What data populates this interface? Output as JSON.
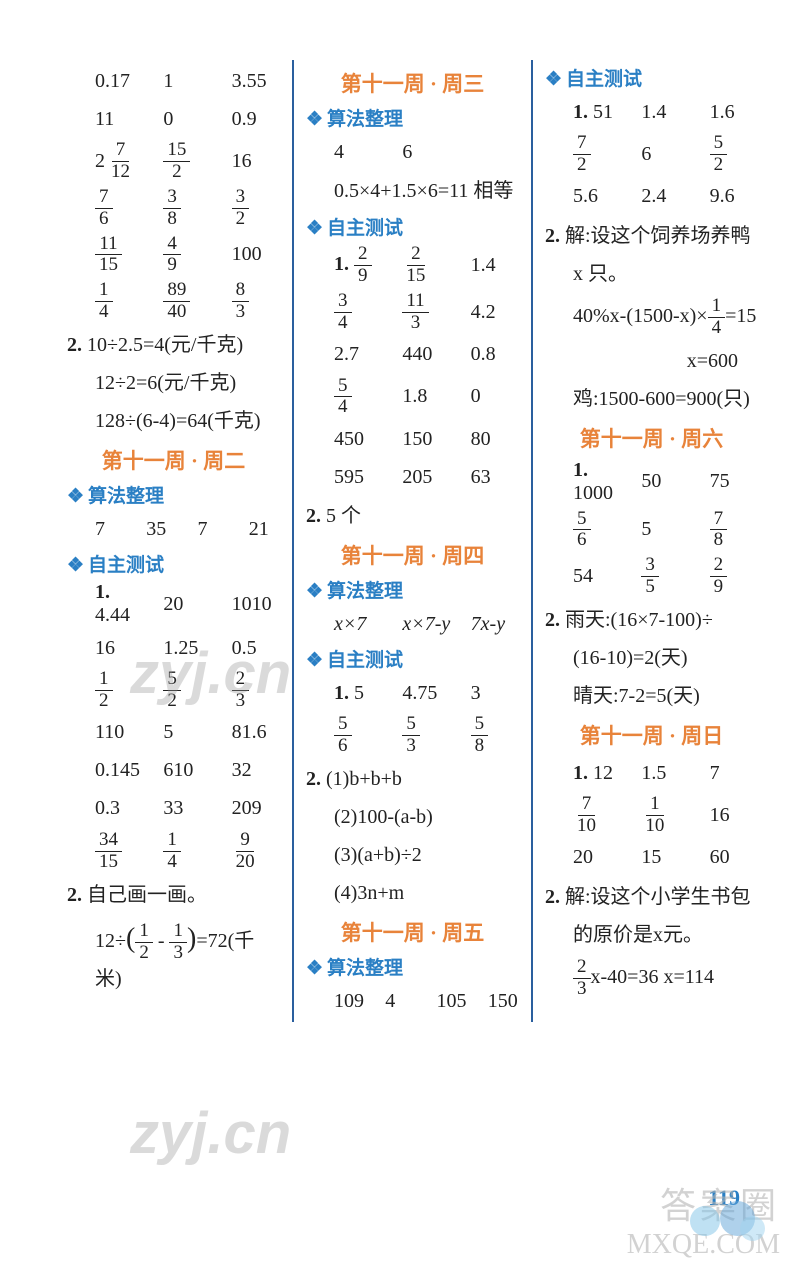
{
  "page_number": "119",
  "colors": {
    "heading_orange": "#e8833a",
    "heading_blue": "#2a7fc4",
    "divider": "#2a5f9e",
    "text": "#222222",
    "background": "#ffffff"
  },
  "watermarks": {
    "main": "zyj.cn",
    "bottom_line1": "答案圈",
    "bottom_line2": "MXQE.COM"
  },
  "col1": {
    "grid1": [
      [
        "0.17",
        "1",
        "3.55"
      ],
      [
        "11",
        "0",
        "0.9"
      ]
    ],
    "frac_row1": [
      {
        "type": "mixed",
        "whole": "2",
        "num": "7",
        "den": "12"
      },
      {
        "type": "frac",
        "num": "15",
        "den": "2"
      },
      {
        "type": "text",
        "val": "16"
      }
    ],
    "frac_row2": [
      {
        "type": "frac",
        "num": "7",
        "den": "6"
      },
      {
        "type": "frac",
        "num": "3",
        "den": "8"
      },
      {
        "type": "frac",
        "num": "3",
        "den": "2"
      }
    ],
    "frac_row3": [
      {
        "type": "frac",
        "num": "11",
        "den": "15"
      },
      {
        "type": "frac",
        "num": "4",
        "den": "9"
      },
      {
        "type": "text",
        "val": "100"
      }
    ],
    "frac_row4": [
      {
        "type": "frac",
        "num": "1",
        "den": "4"
      },
      {
        "type": "frac",
        "num": "89",
        "den": "40"
      },
      {
        "type": "frac",
        "num": "8",
        "den": "3"
      }
    ],
    "q2_lines": [
      "10÷2.5=4(元/千克)",
      "12÷2=6(元/千克)",
      "128÷(6-4)=64(千克)"
    ],
    "week_header": "第十一周 · 周二",
    "section1": "算法整理",
    "section1_row": [
      "7",
      "35",
      "7",
      "21"
    ],
    "section2": "自主测试",
    "q1_label": "1.",
    "test_rows": [
      [
        "4.44",
        "20",
        "1010"
      ],
      [
        "16",
        "1.25",
        "0.5"
      ]
    ],
    "test_frac_row1": [
      {
        "type": "frac",
        "num": "1",
        "den": "2"
      },
      {
        "type": "frac",
        "num": "5",
        "den": "2"
      },
      {
        "type": "frac",
        "num": "2",
        "den": "3"
      }
    ],
    "test_rows2": [
      [
        "110",
        "5",
        "81.6"
      ],
      [
        "0.145",
        "610",
        "32"
      ],
      [
        "0.3",
        "33",
        "209"
      ]
    ],
    "test_frac_row2": [
      {
        "type": "frac",
        "num": "34",
        "den": "15"
      },
      {
        "type": "frac",
        "num": "1",
        "den": "4"
      },
      {
        "type": "frac",
        "num": "9",
        "den": "20"
      }
    ],
    "q2_label": "2.",
    "q2_text": "自己画一画。",
    "q2_expr_prefix": "12÷",
    "q2_expr_f1": {
      "num": "1",
      "den": "2"
    },
    "q2_expr_mid": " - ",
    "q2_expr_f2": {
      "num": "1",
      "den": "3"
    },
    "q2_expr_suffix": "=72(千米)"
  },
  "col2": {
    "week_header1": "第十一周 · 周三",
    "section1": "算法整理",
    "s1_row": [
      "4",
      "6"
    ],
    "s1_line": "0.5×4+1.5×6=11  相等",
    "section2": "自主测试",
    "q1_label": "1.",
    "test_frac_rows": [
      [
        {
          "type": "frac",
          "num": "2",
          "den": "9"
        },
        {
          "type": "frac",
          "num": "2",
          "den": "15"
        },
        {
          "type": "text",
          "val": "1.4"
        }
      ],
      [
        {
          "type": "frac",
          "num": "3",
          "den": "4"
        },
        {
          "type": "frac",
          "num": "11",
          "den": "3"
        },
        {
          "type": "text",
          "val": "4.2"
        }
      ],
      [
        {
          "type": "text",
          "val": "2.7"
        },
        {
          "type": "text",
          "val": "440"
        },
        {
          "type": "text",
          "val": "0.8"
        }
      ],
      [
        {
          "type": "frac",
          "num": "5",
          "den": "4"
        },
        {
          "type": "text",
          "val": "1.8"
        },
        {
          "type": "text",
          "val": "0"
        }
      ],
      [
        {
          "type": "text",
          "val": "450"
        },
        {
          "type": "text",
          "val": "150"
        },
        {
          "type": "text",
          "val": "80"
        }
      ],
      [
        {
          "type": "text",
          "val": "595"
        },
        {
          "type": "text",
          "val": "205"
        },
        {
          "type": "text",
          "val": "63"
        }
      ]
    ],
    "q2_line": "5 个",
    "week_header2": "第十一周 · 周四",
    "section3": "算法整理",
    "s3_row": [
      "x×7",
      "x×7-y",
      "7x-y"
    ],
    "section4": "自主测试",
    "q1b_label": "1.",
    "test2_rows": [
      [
        {
          "type": "text",
          "val": "5"
        },
        {
          "type": "text",
          "val": "4.75"
        },
        {
          "type": "text",
          "val": "3"
        }
      ],
      [
        {
          "type": "frac",
          "num": "5",
          "den": "6"
        },
        {
          "type": "frac",
          "num": "5",
          "den": "3"
        },
        {
          "type": "frac",
          "num": "5",
          "den": "8"
        }
      ]
    ],
    "q2b_label": "2.",
    "q2b_items": [
      "(1)b+b+b",
      "(2)100-(a-b)",
      "(3)(a+b)÷2",
      "(4)3n+m"
    ],
    "week_header3": "第十一周 · 周五",
    "section5": "算法整理",
    "s5_row": [
      "109",
      "4",
      "105",
      "150"
    ]
  },
  "col3": {
    "section1": "自主测试",
    "q1_label": "1.",
    "q1_rows": [
      [
        {
          "type": "text",
          "val": "51"
        },
        {
          "type": "text",
          "val": "1.4"
        },
        {
          "type": "text",
          "val": "1.6"
        }
      ],
      [
        {
          "type": "frac",
          "num": "7",
          "den": "2"
        },
        {
          "type": "text",
          "val": "6"
        },
        {
          "type": "frac",
          "num": "5",
          "den": "2"
        }
      ],
      [
        {
          "type": "text",
          "val": "5.6"
        },
        {
          "type": "text",
          "val": "2.4"
        },
        {
          "type": "text",
          "val": "9.6"
        }
      ]
    ],
    "q2_label": "2.",
    "q2_line1": "解:设这个饲养场养鸭",
    "q2_line2": "x 只。",
    "q2_expr_prefix": "40%x-(1500-x)×",
    "q2_expr_frac": {
      "num": "1",
      "den": "4"
    },
    "q2_expr_suffix": "=15",
    "q2_result": "x=600",
    "q2_line3": "鸡:1500-600=900(只)",
    "week_header1": "第十一周 · 周六",
    "q1b_label": "1.",
    "q1b_rows": [
      [
        {
          "type": "text",
          "val": "1000"
        },
        {
          "type": "text",
          "val": "50"
        },
        {
          "type": "text",
          "val": "75"
        }
      ],
      [
        {
          "type": "frac",
          "num": "5",
          "den": "6"
        },
        {
          "type": "text",
          "val": "5"
        },
        {
          "type": "frac",
          "num": "7",
          "den": "8"
        }
      ],
      [
        {
          "type": "text",
          "val": "54"
        },
        {
          "type": "frac",
          "num": "3",
          "den": "5"
        },
        {
          "type": "frac",
          "num": "2",
          "den": "9"
        }
      ]
    ],
    "q2b_label": "2.",
    "q2b_line1": "雨天:(16×7-100)÷",
    "q2b_line2": "(16-10)=2(天)",
    "q2b_line3": "晴天:7-2=5(天)",
    "week_header2": "第十一周 · 周日",
    "q1c_label": "1.",
    "q1c_rows": [
      [
        {
          "type": "text",
          "val": "12"
        },
        {
          "type": "text",
          "val": "1.5"
        },
        {
          "type": "text",
          "val": "7"
        }
      ],
      [
        {
          "type": "frac",
          "num": "7",
          "den": "10"
        },
        {
          "type": "frac",
          "num": "1",
          "den": "10"
        },
        {
          "type": "text",
          "val": "16"
        }
      ],
      [
        {
          "type": "text",
          "val": "20"
        },
        {
          "type": "text",
          "val": "15"
        },
        {
          "type": "text",
          "val": "60"
        }
      ]
    ],
    "q2c_label": "2.",
    "q2c_line1": "解:设这个小学生书包",
    "q2c_line2": "的原价是x元。",
    "q2c_expr_frac": {
      "num": "2",
      "den": "3"
    },
    "q2c_expr_suffix": "x-40=36    x=114"
  }
}
